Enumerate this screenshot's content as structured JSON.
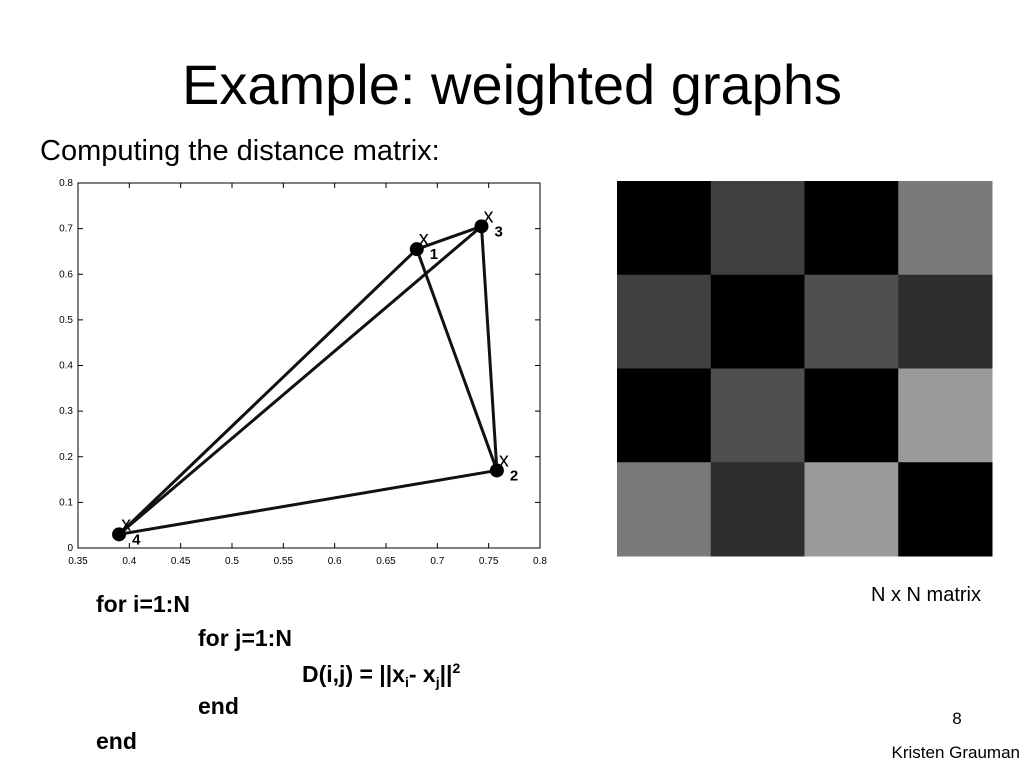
{
  "title": "Example: weighted graphs",
  "subtitle": "Computing the distance matrix:",
  "plot": {
    "xlim": [
      0.35,
      0.8
    ],
    "ylim": [
      0,
      0.8
    ],
    "xticks": [
      0.35,
      0.4,
      0.45,
      0.5,
      0.55,
      0.6,
      0.65,
      0.7,
      0.75,
      0.8
    ],
    "yticks": [
      0,
      0.1,
      0.2,
      0.3,
      0.4,
      0.5,
      0.6,
      0.7,
      0.8
    ],
    "points": [
      {
        "x": 0.68,
        "y": 0.655,
        "label": "x",
        "sub": "1"
      },
      {
        "x": 0.758,
        "y": 0.17,
        "label": "x",
        "sub": "2"
      },
      {
        "x": 0.743,
        "y": 0.705,
        "label": "x",
        "sub": "3"
      },
      {
        "x": 0.39,
        "y": 0.03,
        "label": "x",
        "sub": "4"
      }
    ]
  },
  "matrix": {
    "cells": [
      [
        "#000000",
        "#404040",
        "#000000",
        "#7a7a7a"
      ],
      [
        "#404040",
        "#000000",
        "#4f4f4f",
        "#2d2d2d"
      ],
      [
        "#000000",
        "#4f4f4f",
        "#000000",
        "#9a9a9a"
      ],
      [
        "#7a7a7a",
        "#2d2d2d",
        "#9a9a9a",
        "#000000"
      ]
    ],
    "caption": "N x N matrix"
  },
  "code": {
    "line1": "for i=1:N",
    "line2": "for j=1:N",
    "formula": {
      "a": "D(i,j) = ||x",
      "sub1": "i",
      "b": "- x",
      "sub2": "j",
      "c": "||",
      "sup": "2"
    },
    "line4": "end",
    "line5": "end"
  },
  "page_number": "8",
  "credit": "Kristen Grauman"
}
